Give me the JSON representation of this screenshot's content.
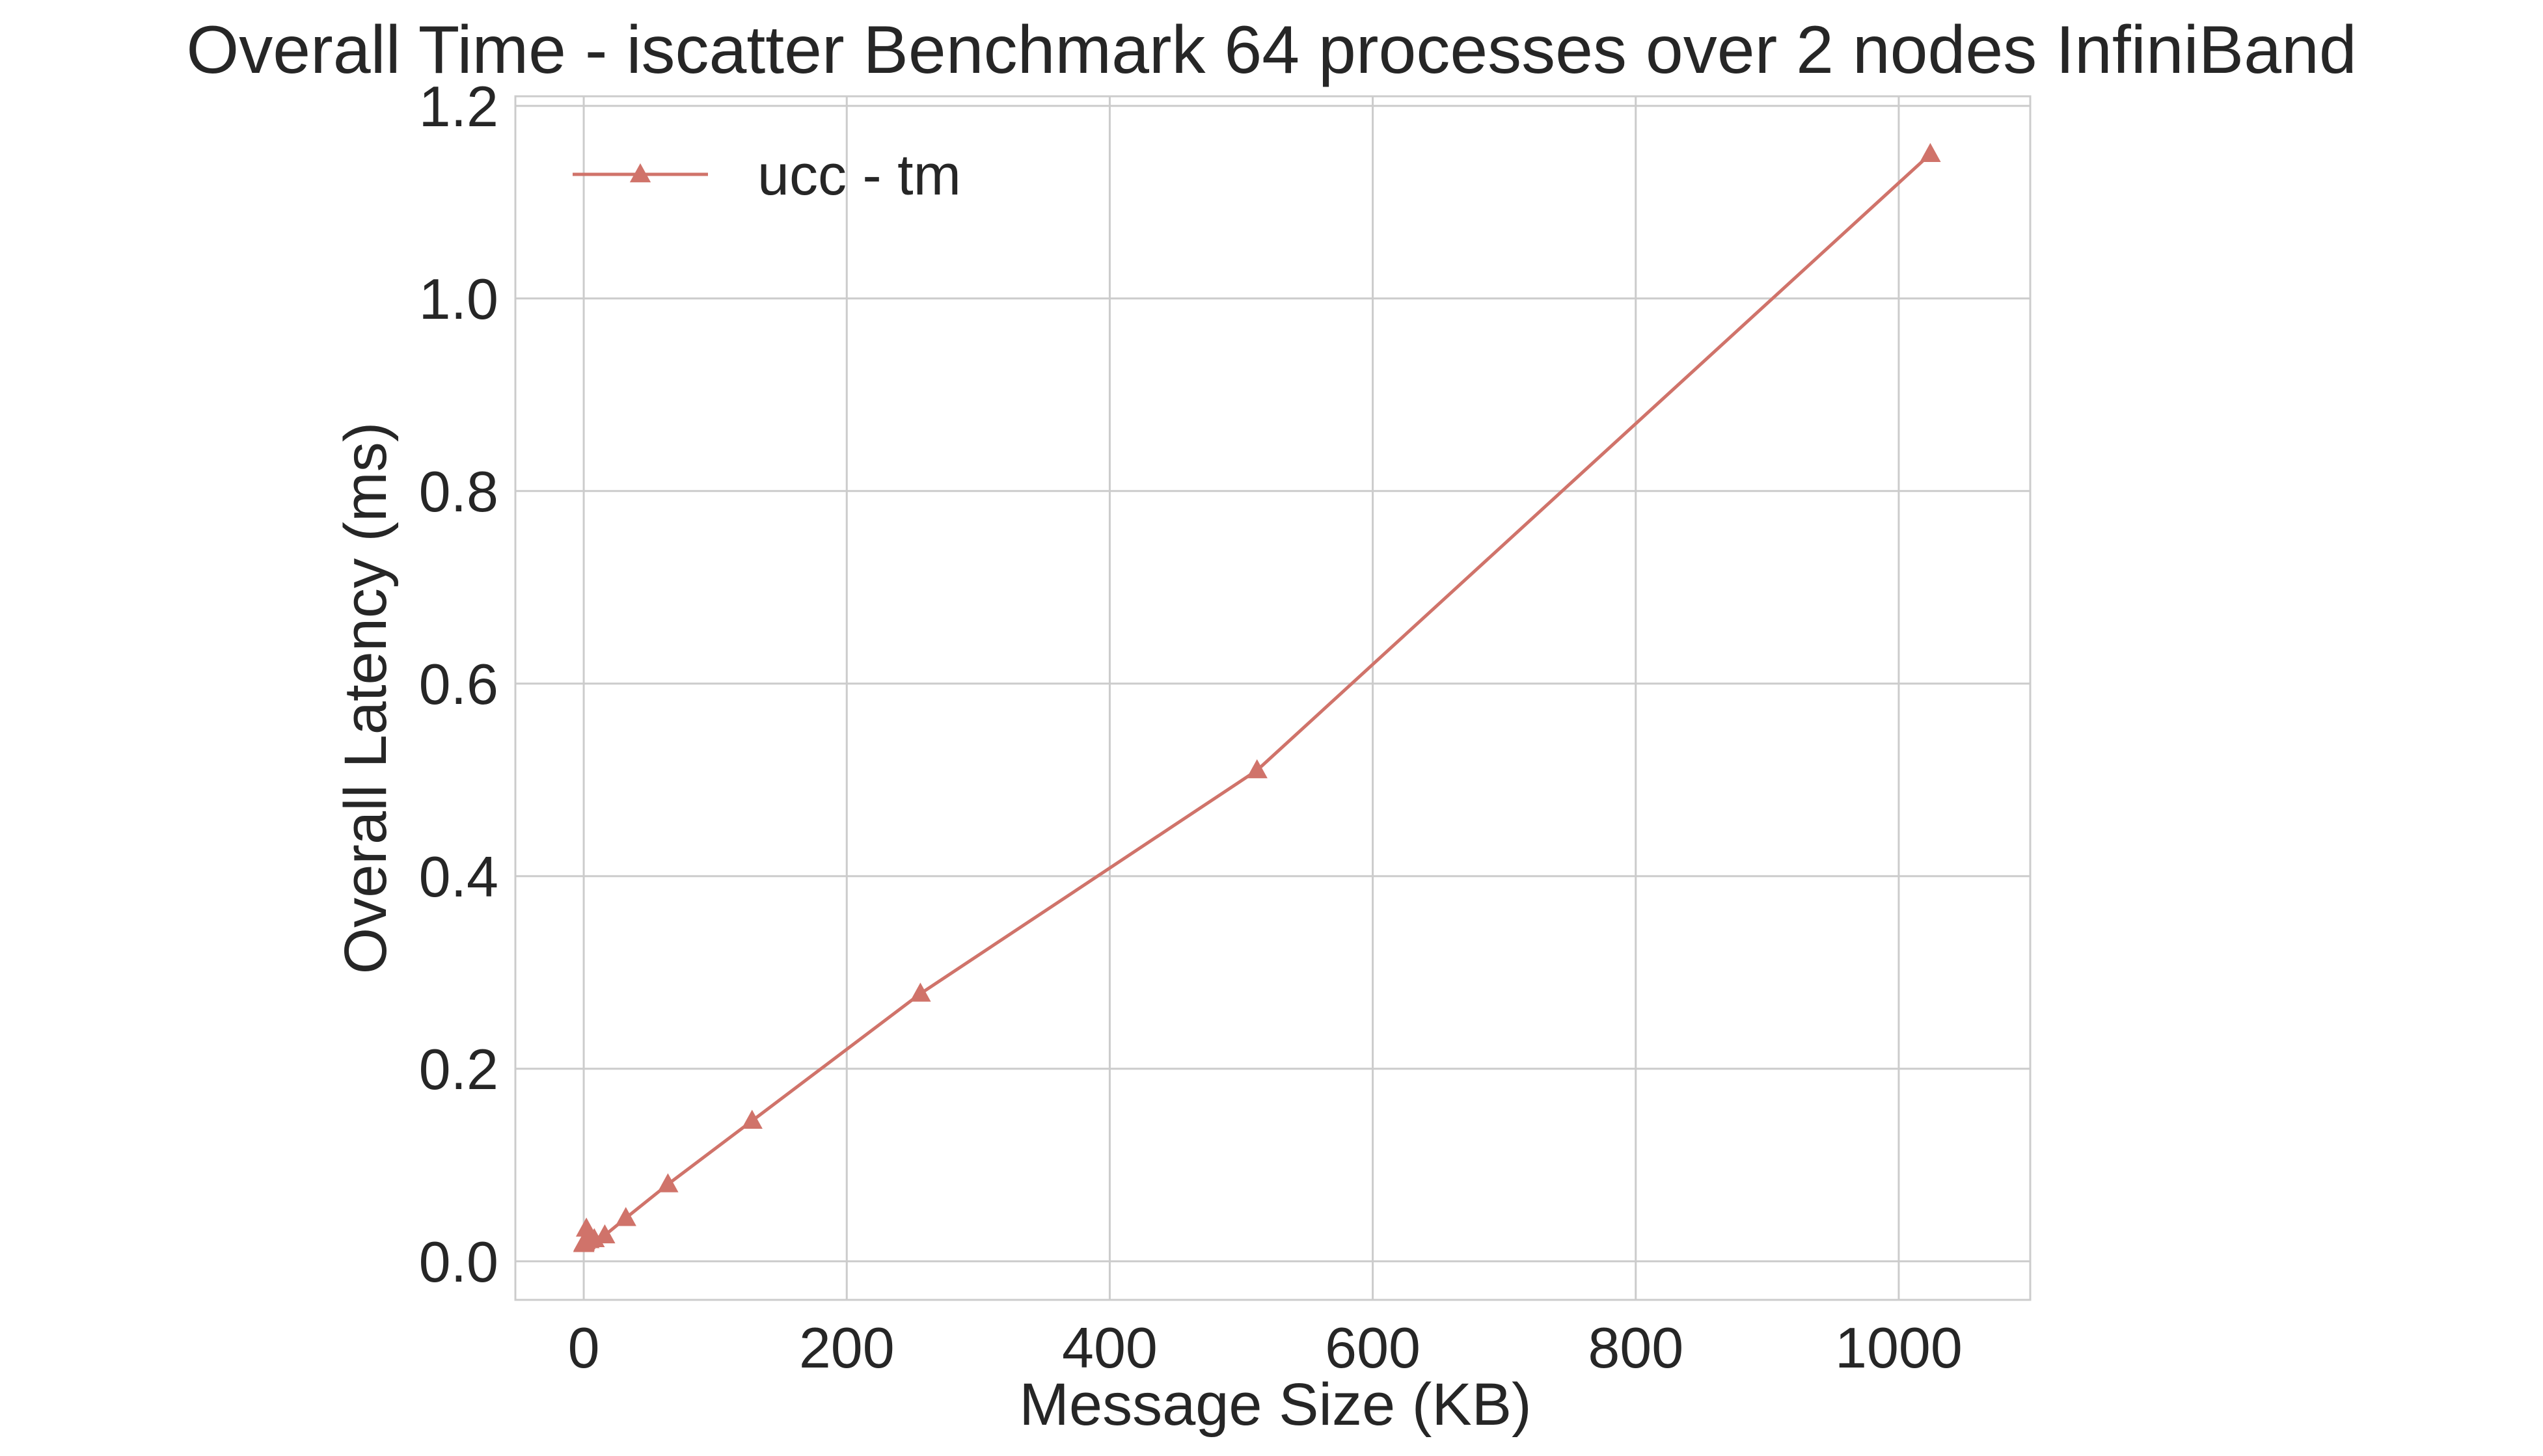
{
  "chart_data": {
    "type": "line",
    "title": "Overall Time - iscatter Benchmark 64 processes over 2 nodes InfiniBand",
    "xlabel": "Message Size (KB)",
    "ylabel": "Overall Latency (ms)",
    "xlim": [
      -52,
      1100
    ],
    "ylim": [
      -0.04,
      1.21
    ],
    "x_ticks": [
      0,
      200,
      400,
      600,
      800,
      1000
    ],
    "y_ticks": [
      0.0,
      0.2,
      0.4,
      0.6,
      0.8,
      1.0,
      1.2
    ],
    "x_tick_labels": [
      "0",
      "200",
      "400",
      "600",
      "800",
      "1000"
    ],
    "y_tick_labels": [
      "0.0",
      "0.2",
      "0.4",
      "0.6",
      "0.8",
      "1.0",
      "1.2"
    ],
    "grid": true,
    "legend_position": "top-left",
    "series": [
      {
        "name": "ucc - tm",
        "color": "#d0736a",
        "marker": "triangle",
        "x": [
          0.001,
          0.002,
          0.004,
          0.008,
          0.016,
          0.032,
          0.064,
          0.128,
          0.256,
          0.512,
          1,
          2,
          4,
          8,
          16,
          32,
          64,
          128,
          256,
          512,
          1024
        ],
        "y": [
          0.018,
          0.018,
          0.018,
          0.018,
          0.018,
          0.018,
          0.018,
          0.019,
          0.019,
          0.02,
          0.021,
          0.034,
          0.022,
          0.023,
          0.027,
          0.045,
          0.08,
          0.146,
          0.278,
          0.51,
          1.15
        ]
      }
    ]
  }
}
